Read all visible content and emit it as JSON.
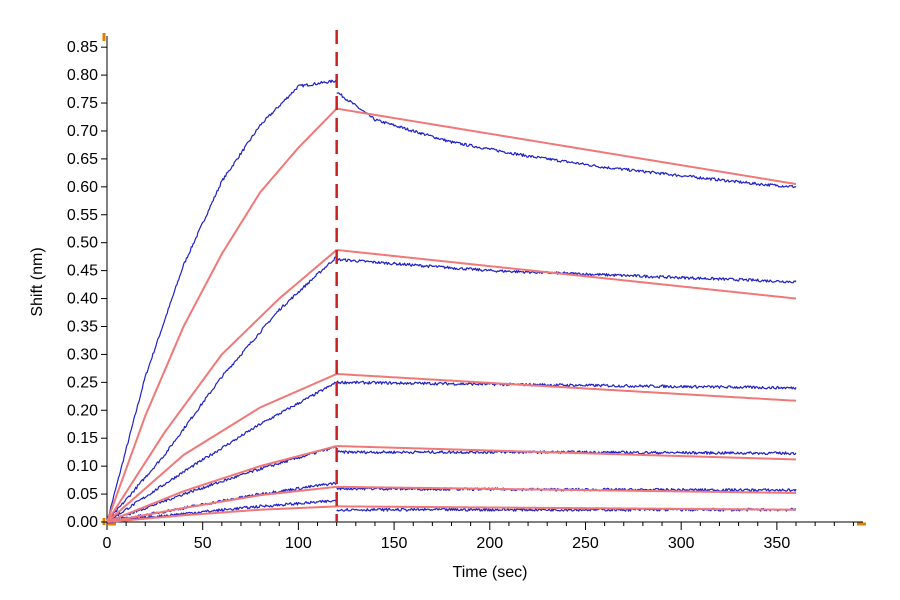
{
  "chart_data": {
    "type": "line",
    "title": "",
    "xlabel": "Time (sec)",
    "ylabel": "Shift (nm)",
    "xlim": [
      0,
      395
    ],
    "ylim": [
      0,
      0.87
    ],
    "x_ticks": [
      0,
      50,
      100,
      150,
      200,
      250,
      300,
      350
    ],
    "x_tick_labels": [
      "0",
      "50",
      "100",
      "150",
      "200",
      "250",
      "300",
      "350"
    ],
    "y_ticks": [
      0,
      0.05,
      0.1,
      0.15,
      0.2,
      0.25,
      0.3,
      0.35,
      0.4,
      0.45,
      0.5,
      0.55,
      0.6,
      0.65,
      0.7,
      0.75,
      0.8,
      0.85
    ],
    "y_tick_labels": [
      "0.00",
      "0.05",
      "0.10",
      "0.15",
      "0.20",
      "0.25",
      "0.30",
      "0.35",
      "0.40",
      "0.45",
      "0.50",
      "0.55",
      "0.60",
      "0.65",
      "0.70",
      "0.75",
      "0.80",
      "0.85"
    ],
    "grid": false,
    "legend": "none",
    "association_end_x": 120,
    "end_x": 360,
    "colors": {
      "measured": "#2020c8",
      "fit": "#f07878",
      "divider": "#cc2020",
      "axis_marker": "#e08000"
    },
    "series": [
      {
        "kind": "measured",
        "association_points": [
          [
            0,
            0
          ],
          [
            20,
            0.26
          ],
          [
            40,
            0.46
          ],
          [
            60,
            0.61
          ],
          [
            80,
            0.71
          ],
          [
            100,
            0.78
          ],
          [
            120,
            0.79
          ]
        ],
        "dissociation_points": [
          [
            120,
            0.77
          ],
          [
            140,
            0.72
          ],
          [
            180,
            0.68
          ],
          [
            220,
            0.655
          ],
          [
            260,
            0.635
          ],
          [
            300,
            0.62
          ],
          [
            340,
            0.605
          ],
          [
            360,
            0.6
          ]
        ]
      },
      {
        "kind": "fit",
        "association_points": [
          [
            0,
            0
          ],
          [
            20,
            0.19
          ],
          [
            40,
            0.35
          ],
          [
            60,
            0.48
          ],
          [
            80,
            0.59
          ],
          [
            100,
            0.67
          ],
          [
            120,
            0.74
          ]
        ],
        "dissociation_points": [
          [
            120,
            0.74
          ],
          [
            360,
            0.605
          ]
        ]
      },
      {
        "kind": "measured",
        "association_points": [
          [
            0,
            0
          ],
          [
            30,
            0.12
          ],
          [
            60,
            0.26
          ],
          [
            90,
            0.38
          ],
          [
            120,
            0.475
          ]
        ],
        "dissociation_points": [
          [
            120,
            0.47
          ],
          [
            200,
            0.45
          ],
          [
            280,
            0.44
          ],
          [
            360,
            0.43
          ]
        ]
      },
      {
        "kind": "fit",
        "association_points": [
          [
            0,
            0
          ],
          [
            30,
            0.16
          ],
          [
            60,
            0.3
          ],
          [
            90,
            0.4
          ],
          [
            120,
            0.487
          ]
        ],
        "dissociation_points": [
          [
            120,
            0.487
          ],
          [
            360,
            0.4
          ]
        ]
      },
      {
        "kind": "measured",
        "association_points": [
          [
            0,
            0
          ],
          [
            40,
            0.09
          ],
          [
            80,
            0.175
          ],
          [
            120,
            0.25
          ]
        ],
        "dissociation_points": [
          [
            120,
            0.25
          ],
          [
            240,
            0.245
          ],
          [
            360,
            0.24
          ]
        ]
      },
      {
        "kind": "fit",
        "association_points": [
          [
            0,
            0
          ],
          [
            40,
            0.12
          ],
          [
            80,
            0.205
          ],
          [
            120,
            0.265
          ]
        ],
        "dissociation_points": [
          [
            120,
            0.265
          ],
          [
            360,
            0.217
          ]
        ]
      },
      {
        "kind": "measured",
        "association_points": [
          [
            0,
            0
          ],
          [
            40,
            0.05
          ],
          [
            80,
            0.095
          ],
          [
            120,
            0.135
          ]
        ],
        "dissociation_points": [
          [
            120,
            0.125
          ],
          [
            240,
            0.125
          ],
          [
            360,
            0.123
          ]
        ]
      },
      {
        "kind": "fit",
        "association_points": [
          [
            0,
            0
          ],
          [
            40,
            0.055
          ],
          [
            80,
            0.1
          ],
          [
            120,
            0.136
          ]
        ],
        "dissociation_points": [
          [
            120,
            0.136
          ],
          [
            360,
            0.112
          ]
        ]
      },
      {
        "kind": "measured",
        "association_points": [
          [
            0,
            0
          ],
          [
            40,
            0.025
          ],
          [
            80,
            0.05
          ],
          [
            120,
            0.07
          ]
        ],
        "dissociation_points": [
          [
            120,
            0.06
          ],
          [
            240,
            0.058
          ],
          [
            360,
            0.057
          ]
        ]
      },
      {
        "kind": "fit",
        "association_points": [
          [
            0,
            0
          ],
          [
            40,
            0.025
          ],
          [
            80,
            0.048
          ],
          [
            120,
            0.063
          ]
        ],
        "dissociation_points": [
          [
            120,
            0.063
          ],
          [
            360,
            0.052
          ]
        ]
      },
      {
        "kind": "measured",
        "association_points": [
          [
            0,
            0
          ],
          [
            40,
            0.015
          ],
          [
            80,
            0.028
          ],
          [
            120,
            0.038
          ]
        ],
        "dissociation_points": [
          [
            120,
            0.022
          ],
          [
            240,
            0.022
          ],
          [
            360,
            0.022
          ]
        ]
      },
      {
        "kind": "fit",
        "association_points": [
          [
            0,
            0
          ],
          [
            40,
            0.012
          ],
          [
            80,
            0.022
          ],
          [
            120,
            0.028
          ]
        ],
        "dissociation_points": [
          [
            120,
            0.028
          ],
          [
            360,
            0.022
          ]
        ]
      }
    ]
  }
}
